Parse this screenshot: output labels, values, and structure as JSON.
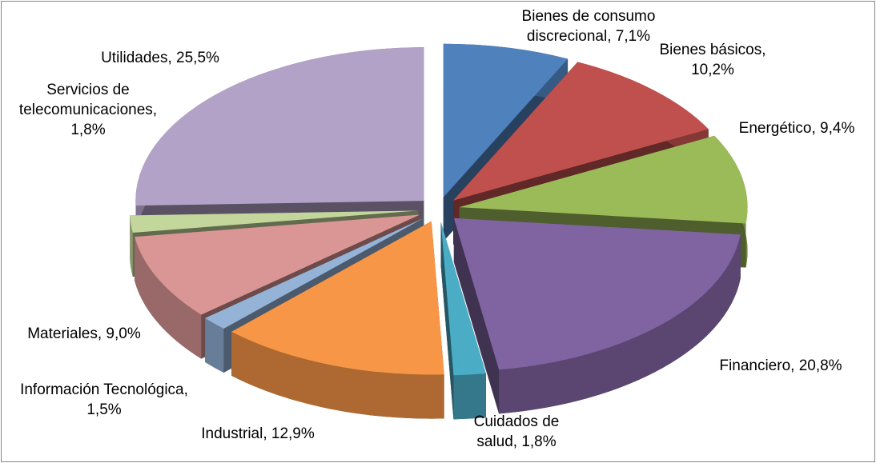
{
  "chart_data": {
    "type": "pie3d",
    "values": [
      7.1,
      10.2,
      9.4,
      20.8,
      1.8,
      12.9,
      1.5,
      9.0,
      1.8,
      25.5
    ],
    "value_labels": [
      "Bienes de consumo discrecional, 7,1%",
      "Bienes básicos, 10,2%",
      "Energético, 9,4%",
      "Financiero, 20,8%",
      "Cuidados de salud, 1,8%",
      "Industrial, 12,9%",
      "Información Tecnológica, 1,5%",
      "Materiales, 9,0%",
      "Servicios de telecomunicaciones, 1,8%",
      "Utilidades, 25,5%"
    ],
    "colors": [
      "#4f81bd",
      "#c0504d",
      "#9bbb59",
      "#8064a2",
      "#4bacc6",
      "#f79646",
      "#95b3d7",
      "#d99694",
      "#c3d69b",
      "#b3a2c7"
    ]
  }
}
